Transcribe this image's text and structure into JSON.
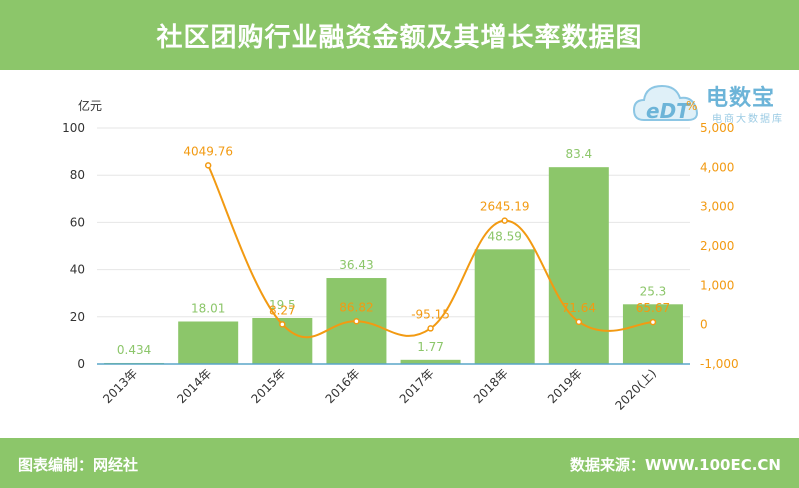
{
  "header": {
    "title": "社区团购行业融资金额及其增长率数据图"
  },
  "footer": {
    "left": "图表编制：网经社",
    "right": "数据来源：WWW.100EC.CN"
  },
  "logo": {
    "brand": "电数宝",
    "sub": "电商大数据库",
    "mark": "eDT"
  },
  "colors": {
    "bar": "#8cc66a",
    "line": "#f29a12",
    "header": "#8cc66a",
    "axis": "#666666"
  },
  "chart_data": {
    "type": "bar",
    "categories": [
      "2013年",
      "2014年",
      "2015年",
      "2016年",
      "2017年",
      "2018年",
      "2019年",
      "2020(上)"
    ],
    "left_axis": {
      "unit": "亿元",
      "ticks": [
        "0",
        "20",
        "40",
        "60",
        "80",
        "100"
      ],
      "ylim": [
        0,
        100
      ]
    },
    "right_axis": {
      "unit": "%",
      "ticks": [
        "-1,000",
        "0",
        "1,000",
        "2,000",
        "3,000",
        "4,000",
        "5,000"
      ],
      "ylim": [
        -1000,
        5000
      ]
    },
    "series": [
      {
        "type": "bar",
        "axis": "left",
        "values": [
          0.434,
          18.01,
          19.5,
          36.43,
          1.77,
          48.59,
          83.4,
          25.3
        ],
        "labels": [
          "0.434",
          "18.01",
          "19.5",
          "36.43",
          "1.77",
          "48.59",
          "83.4",
          "25.3"
        ]
      },
      {
        "type": "line",
        "axis": "right",
        "values": [
          null,
          4049.76,
          8.27,
          86.82,
          -95.15,
          2645.19,
          71.64,
          65.67
        ],
        "labels": [
          "",
          "4049.76",
          "8.27",
          "86.82",
          "-95.15",
          "2645.19",
          "71.64",
          "65.67"
        ]
      }
    ],
    "grid": true
  }
}
